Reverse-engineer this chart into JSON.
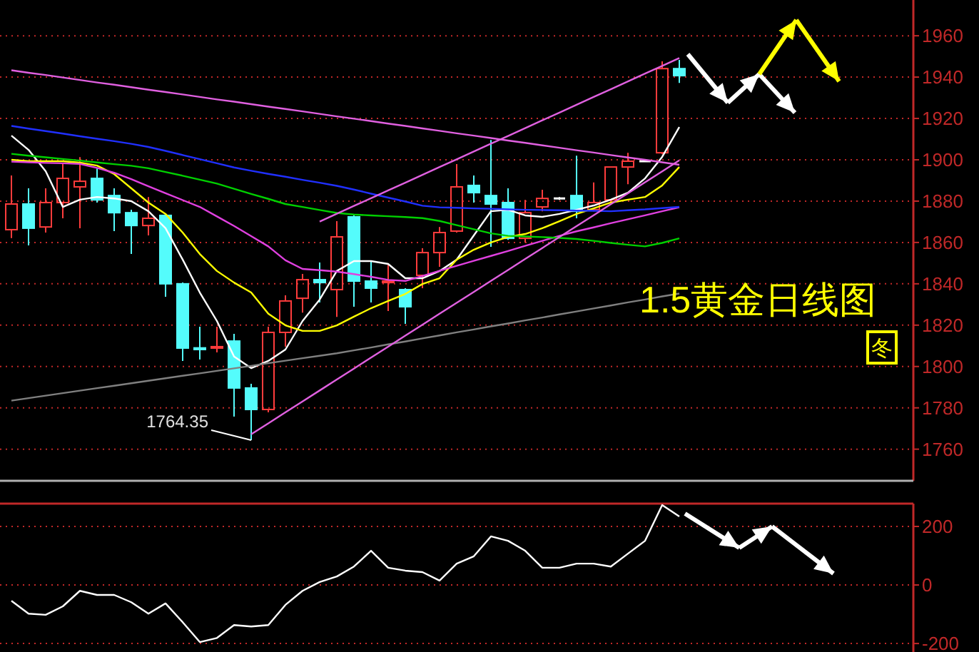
{
  "chart_data": [
    {
      "type": "candlestick",
      "title": "1.5黄金日线图",
      "categories": [
        null,
        null,
        null,
        null,
        null,
        null,
        null,
        null,
        null,
        null,
        null,
        null,
        null,
        null,
        null,
        null,
        null,
        null,
        null,
        null,
        null,
        null,
        null,
        null,
        null,
        null,
        null,
        null,
        null,
        null,
        null,
        null,
        null,
        null,
        null,
        null,
        null,
        null,
        null,
        null
      ],
      "ohlc": [
        [
          1866.2,
          1892.4,
          1862.1,
          1878.6
        ],
        [
          1878.6,
          1886.2,
          1858.6,
          1866.9
        ],
        [
          1867.5,
          1886.2,
          1864.8,
          1879.3
        ],
        [
          1879.3,
          1897.9,
          1871.7,
          1891.0
        ],
        [
          1886.9,
          1901.3,
          1866.9,
          1889.6
        ],
        [
          1891.0,
          1895.8,
          1879.3,
          1880.6
        ],
        [
          1882.7,
          1886.2,
          1865.5,
          1874.4
        ],
        [
          1874.4,
          1875.8,
          1854.4,
          1868.2
        ],
        [
          1868.2,
          1882.0,
          1863.4,
          1871.7
        ],
        [
          1873.1,
          1873.8,
          1833.7,
          1840.0
        ],
        [
          1840.0,
          1840.6,
          1802.7,
          1808.9
        ],
        [
          1809.0,
          1819.2,
          1803.4,
          1808.2
        ],
        [
          1808.9,
          1819.2,
          1806.8,
          1809.6
        ],
        [
          1812.3,
          1815.8,
          1775.8,
          1789.6
        ],
        [
          1789.6,
          1791.6,
          1764.35,
          1779.2
        ],
        [
          1779.2,
          1819.2,
          1777.8,
          1816.5
        ],
        [
          1816.5,
          1834.4,
          1809.6,
          1831.7
        ],
        [
          1833.0,
          1844.8,
          1826.1,
          1842.0
        ],
        [
          1842.0,
          1850.3,
          1831.0,
          1840.6
        ],
        [
          1837.2,
          1870.3,
          1824.0,
          1862.7
        ],
        [
          1872.4,
          1873.8,
          1828.9,
          1841.3
        ],
        [
          1841.3,
          1851.0,
          1831.0,
          1837.9
        ],
        [
          1840.6,
          1849.6,
          1826.8,
          1841.3
        ],
        [
          1837.2,
          1837.9,
          1820.6,
          1828.9
        ],
        [
          1844.1,
          1857.2,
          1837.9,
          1855.1
        ],
        [
          1855.1,
          1867.5,
          1848.2,
          1864.8
        ],
        [
          1865.5,
          1897.9,
          1864.8,
          1886.9
        ],
        [
          1887.6,
          1892.4,
          1879.3,
          1884.1
        ],
        [
          1882.7,
          1909.6,
          1857.9,
          1878.6
        ],
        [
          1879.3,
          1886.2,
          1861.3,
          1862.0
        ],
        [
          1862.0,
          1880.6,
          1860.0,
          1874.4
        ],
        [
          1877.2,
          1885.5,
          1875.1,
          1881.3
        ],
        [
          1881.3,
          1882.0,
          1880.6,
          1881.3
        ],
        [
          1882.7,
          1902.0,
          1871.7,
          1875.1
        ],
        [
          1875.9,
          1889.0,
          1875.1,
          1879.3
        ],
        [
          1880.6,
          1896.5,
          1879.3,
          1896.5
        ],
        [
          1896.5,
          1903.4,
          1888.2,
          1899.3
        ],
        [
          1899.3,
          1899.3,
          1899.3,
          1899.3
        ],
        [
          1903.4,
          1947.6,
          1902.7,
          1944.1
        ],
        [
          1944.1,
          1948.3,
          1937.2,
          1940.7
        ]
      ],
      "colors": [
        "#ff3c3c",
        "#54fcfc",
        "#ff3c3c",
        "#ff3c3c",
        "#ff3c3c",
        "#54fcfc",
        "#54fcfc",
        "#54fcfc",
        "#ff3c3c",
        "#54fcfc",
        "#54fcfc",
        "#54fcfc",
        "#ff3c3c",
        "#54fcfc",
        "#54fcfc",
        "#ff3c3c",
        "#ff3c3c",
        "#ff3c3c",
        "#54fcfc",
        "#ff3c3c",
        "#54fcfc",
        "#54fcfc",
        "#ff3c3c",
        "#54fcfc",
        "#ff3c3c",
        "#ff3c3c",
        "#ff3c3c",
        "#54fcfc",
        "#54fcfc",
        "#54fcfc",
        "#ff3c3c",
        "#ff3c3c",
        "#ffffff",
        "#54fcfc",
        "#ff3c3c",
        "#ff3c3c",
        "#ff3c3c",
        "#ffffff",
        "#ff3c3c",
        "#54fcfc"
      ],
      "series": [
        {
          "type": "line",
          "color": "#ffffff",
          "values": [
            1911.7,
            1904.8,
            1894.5,
            1877.2,
            1880.7,
            1882.0,
            1881.3,
            1880.0,
            1875.1,
            1866.9,
            1851.7,
            1835.8,
            1822.0,
            1804.8,
            1799.2,
            1802.7,
            1808.2,
            1822.0,
            1832.4,
            1846.2,
            1851.0,
            1851.0,
            1849.6,
            1842.7,
            1842.7,
            1846.2,
            1851.7,
            1863.4,
            1875.1,
            1875.8,
            1873.1,
            1872.4,
            1873.8,
            1875.8,
            1877.9,
            1880.7,
            1884.1,
            1891.0,
            1901.4,
            1915.8
          ]
        },
        {
          "type": "line",
          "color": "#ffff00",
          "values": [
            1900.0,
            1899.3,
            1899.3,
            1899.3,
            1898.6,
            1897.2,
            1893.1,
            1886.2,
            1879.3,
            1873.8,
            1864.8,
            1854.4,
            1846.2,
            1840.6,
            1835.8,
            1825.5,
            1819.9,
            1817.2,
            1817.2,
            1819.9,
            1824.1,
            1828.2,
            1831.7,
            1835.1,
            1839.9,
            1842.7,
            1851.7,
            1856.5,
            1860.0,
            1862.7,
            1864.1,
            1866.9,
            1870.3,
            1873.8,
            1876.5,
            1879.3,
            1880.7,
            1882.0,
            1887.6,
            1896.5
          ]
        },
        {
          "type": "line",
          "color": "#e040e0",
          "values": [
            1899.1,
            1898.8,
            1898.5,
            1898.3,
            1898.0,
            1896.1,
            1893.7,
            1890.6,
            1887.2,
            1883.8,
            1880.5,
            1877.2,
            1872.6,
            1868.0,
            1863.1,
            1858.1,
            1851.4,
            1847.2,
            1846.6,
            1845.9,
            1844.7,
            1843.4,
            1841.9,
            1841.4,
            1843.8,
            1846.3,
            1848.7,
            1851.1,
            1853.5,
            1855.9,
            1858.4,
            1860.8,
            1863.2,
            1865.4,
            1867.3,
            1869.3,
            1871.2,
            1873.1,
            1875.1,
            1877.0
          ]
        },
        {
          "type": "line",
          "color": "#00d000",
          "values": [
            1902.9,
            1902.0,
            1901.2,
            1900.4,
            1899.6,
            1898.7,
            1897.9,
            1897.1,
            1895.9,
            1894.1,
            1892.3,
            1890.4,
            1888.5,
            1886.0,
            1883.5,
            1881.1,
            1878.6,
            1877.2,
            1875.7,
            1874.3,
            1873.5,
            1873.1,
            1872.7,
            1872.3,
            1871.8,
            1870.4,
            1868.4,
            1866.4,
            1864.4,
            1863.2,
            1862.9,
            1862.6,
            1862.2,
            1861.7,
            1860.8,
            1859.8,
            1858.9,
            1858.1,
            1859.8,
            1862.0
          ]
        },
        {
          "type": "line",
          "color": "#2030ff",
          "values": [
            1916.4,
            1915.1,
            1913.9,
            1912.7,
            1911.4,
            1910.2,
            1909.0,
            1907.7,
            1906.2,
            1904.3,
            1902.3,
            1900.3,
            1898.3,
            1896.3,
            1894.7,
            1893.2,
            1891.8,
            1890.3,
            1888.9,
            1887.4,
            1885.6,
            1883.6,
            1881.7,
            1879.8,
            1877.8,
            1877.0,
            1876.8,
            1876.5,
            1876.3,
            1876.0,
            1875.8,
            1875.7,
            1875.6,
            1875.4,
            1875.3,
            1875.1,
            1875.6,
            1876.0,
            1876.6,
            1877.2
          ]
        },
        {
          "type": "line",
          "color": "#808080",
          "values": [
            1783.5,
            1784.7,
            1785.9,
            1787.1,
            1788.3,
            1789.5,
            1790.7,
            1791.9,
            1793.1,
            1794.3,
            1795.5,
            1796.7,
            1797.9,
            1799.1,
            1800.3,
            1801.6,
            1802.8,
            1804.0,
            1805.2,
            1806.4,
            1807.8,
            1809.2,
            1810.7,
            1812.1,
            1813.6,
            1815.0,
            1816.5,
            1817.9,
            1819.4,
            1820.8,
            1822.3,
            1823.7,
            1825.2,
            1826.6,
            1828.1,
            1829.5,
            1831.0,
            1832.4,
            1833.9,
            1835.3
          ]
        },
        {
          "type": "line",
          "color": "#e060e0",
          "values": [
            1943.3,
            1942.1,
            1941.0,
            1939.8,
            1938.6,
            1937.4,
            1936.3,
            1935.1,
            1933.9,
            1932.8,
            1931.6,
            1930.4,
            1929.2,
            1928.1,
            1926.9,
            1925.7,
            1924.6,
            1923.4,
            1922.2,
            1921.0,
            1919.9,
            1918.7,
            1917.5,
            1916.4,
            1915.2,
            1914.0,
            1912.8,
            1911.7,
            1910.5,
            1909.3,
            1908.2,
            1907.0,
            1905.8,
            1904.6,
            1903.5,
            1902.3,
            1901.1,
            1900.0,
            1898.8,
            1897.6
          ]
        },
        {
          "type": "line",
          "color": "#e060e0",
          "values": [
            null,
            null,
            null,
            null,
            null,
            null,
            null,
            null,
            null,
            null,
            null,
            null,
            null,
            null,
            null,
            null,
            null,
            null,
            1870.1,
            1873.9,
            1877.7,
            1881.4,
            1885.2,
            1888.9,
            1892.7,
            1896.5,
            1900.2,
            1904.0,
            1907.8,
            1911.5,
            1915.3,
            1919.1,
            1922.8,
            1926.6,
            1930.4,
            1934.1,
            1937.9,
            1941.7,
            1945.4,
            1949.2
          ]
        },
        {
          "type": "line",
          "color": "#e060e0",
          "values": [
            null,
            null,
            null,
            null,
            null,
            null,
            null,
            null,
            null,
            null,
            null,
            null,
            null,
            null,
            1767.2,
            1772.5,
            1777.8,
            1783.1,
            1788.4,
            1793.7,
            1799.0,
            1804.3,
            1809.6,
            1814.9,
            1820.2,
            1825.5,
            1830.8,
            1836.1,
            1841.4,
            1846.7,
            1852.0,
            1857.3,
            1862.6,
            1867.9,
            1873.2,
            1878.5,
            1883.8,
            1889.1,
            1894.4,
            1899.7
          ]
        }
      ],
      "ylim": [
        1744.7,
        1977.3
      ],
      "yticks": [
        1760,
        1780,
        1800,
        1820,
        1840,
        1860,
        1880,
        1900,
        1920,
        1940,
        1960
      ],
      "grid": "y",
      "tick_labels": "y",
      "annotations": [
        "1764.35",
        "冬"
      ]
    },
    {
      "type": "line",
      "categories": [
        null,
        null,
        null,
        null,
        null,
        null,
        null,
        null,
        null,
        null,
        null,
        null,
        null,
        null,
        null,
        null,
        null,
        null,
        null,
        null,
        null,
        null,
        null,
        null,
        null,
        null,
        null,
        null,
        null,
        null,
        null,
        null,
        null,
        null,
        null,
        null,
        null,
        null,
        null,
        null
      ],
      "series": [
        {
          "color": "#ffffff",
          "values": [
            -54,
            -98,
            -102,
            -73,
            -20,
            -34,
            -34,
            -59,
            -98,
            -63,
            -127,
            -195,
            -181,
            -137,
            -142,
            -137,
            -68,
            -20,
            10,
            29,
            63,
            117,
            59,
            49,
            44,
            15,
            73,
            98,
            166,
            151,
            117,
            59,
            59,
            73,
            73,
            63,
            107,
            151,
            273,
            234
          ]
        }
      ],
      "ylim": [
        -229,
        278
      ],
      "yticks": [
        200,
        0,
        -200
      ],
      "grid": "y",
      "tick_labels": "y"
    }
  ]
}
